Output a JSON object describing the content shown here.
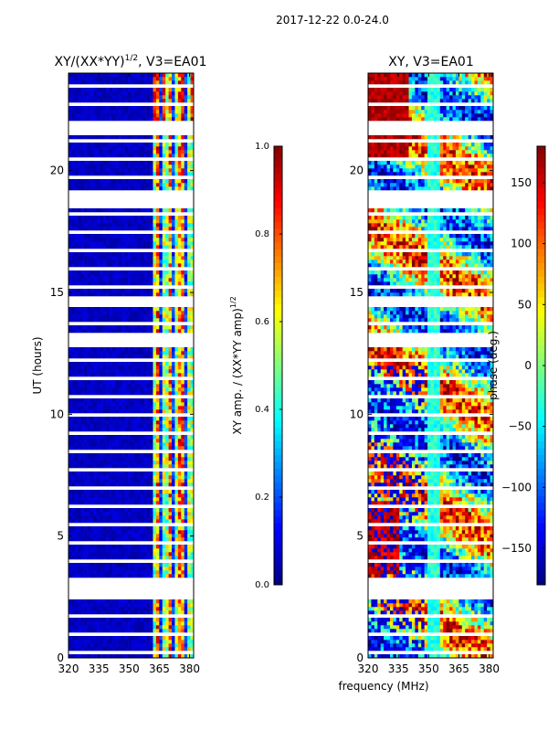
{
  "suptitle": "2017-12-22 0.0-24.0",
  "chart_data": [
    {
      "type": "heatmap",
      "title_main": "XY/(XX*YY)",
      "title_exp": "1/2",
      "title_tail": ", V3=EA01",
      "xlim": [
        320,
        382
      ],
      "ylim": [
        0,
        24
      ],
      "xticks": [
        "320",
        "335",
        "350",
        "365",
        "380"
      ],
      "xtick_values": [
        320,
        335,
        350,
        365,
        380
      ],
      "yticks": [
        "0",
        "5",
        "10",
        "15",
        "20"
      ],
      "ytick_values": [
        0,
        5,
        10,
        15,
        20
      ],
      "ylabel": "UT (hours)",
      "colormap": "jet",
      "colorbar": {
        "label_main": "XY amp. / (XX*YY amp)",
        "label_exp": "1/2",
        "range": [
          0.0,
          1.0
        ],
        "ticks": [
          "0.0",
          "0.2",
          "0.4",
          "0.6",
          "0.8",
          "1.0"
        ],
        "tick_values": [
          0.0,
          0.2,
          0.4,
          0.6,
          0.8,
          1.0
        ]
      }
    },
    {
      "type": "heatmap",
      "title": "XY, V3=EA01",
      "xlim": [
        320,
        382
      ],
      "ylim": [
        0,
        24
      ],
      "xticks": [
        "320",
        "335",
        "350",
        "365",
        "380"
      ],
      "xtick_values": [
        320,
        335,
        350,
        365,
        380
      ],
      "yticks": [
        "0",
        "5",
        "10",
        "15",
        "20"
      ],
      "ytick_values": [
        0,
        5,
        10,
        15,
        20
      ],
      "xlabel": "frequency (MHz)",
      "colormap": "jet",
      "colorbar": {
        "label": "phase (deg.)",
        "range": [
          -180,
          180
        ],
        "ticks": [
          "−150",
          "−100",
          "−50",
          "0",
          "50",
          "100",
          "150"
        ],
        "tick_values": [
          -150,
          -100,
          -50,
          0,
          50,
          100,
          150
        ]
      }
    }
  ],
  "colors": {
    "background": "#ffffff",
    "gap": "#ffffff",
    "frame": "#000000"
  }
}
